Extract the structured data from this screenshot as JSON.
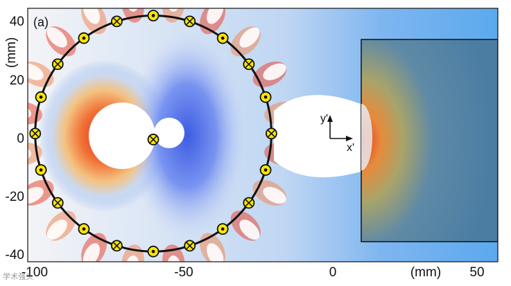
{
  "figure": {
    "panel_label": "(a)",
    "x_unit_label": "(mm)",
    "y_unit_label": "(mm)",
    "x_ticks": [
      "-100",
      "-50",
      "0",
      "50"
    ],
    "y_ticks": [
      "40",
      "20",
      "0",
      "-20",
      "-40"
    ],
    "local_axes": {
      "y_label": "y'",
      "x_label": "x'"
    },
    "watermark": "学术强头"
  },
  "diagram_data": {
    "x_range_mm": [
      -103,
      58
    ],
    "y_range_mm": [
      -41,
      44
    ],
    "ring": {
      "center_mm": [
        -60,
        2
      ],
      "radius_mm": 40
    },
    "conductor_count": 20,
    "center_conductor": {
      "position_mm": [
        -60,
        0
      ],
      "symbol": "cross"
    },
    "block": {
      "x_mm": [
        10,
        58
      ],
      "y_mm": [
        -35,
        32
      ]
    },
    "colors": {
      "ring": "#111111",
      "conductor_fill": "#ffe600",
      "field_hot": "#e3261d",
      "field_cold": "#2d4de0",
      "block": "#4b7da3"
    }
  }
}
